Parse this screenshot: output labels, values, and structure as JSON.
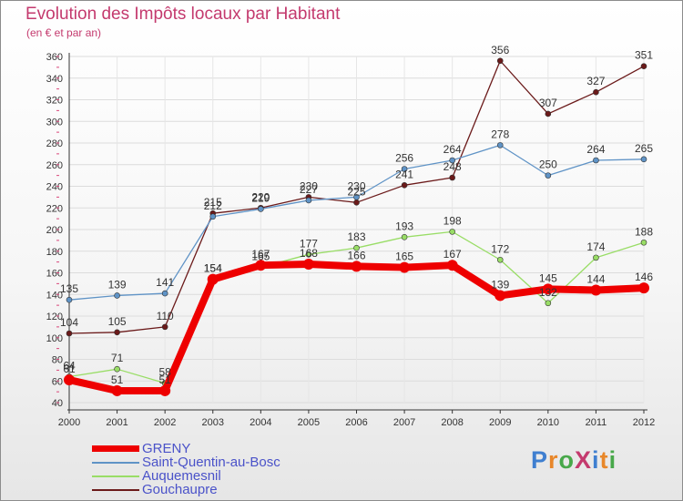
{
  "header": {
    "title": "Evolution des Impôts locaux par Habitant",
    "subtitle": "(en € et par an)"
  },
  "logo": {
    "text": "ProXiti"
  },
  "chart_data": {
    "type": "line",
    "title": "Evolution des Impôts locaux par Habitant",
    "subtitle": "(en € et par an)",
    "xlabel": "",
    "ylabel": "",
    "x": [
      "2000",
      "2001",
      "2002",
      "2003",
      "2004",
      "2005",
      "2006",
      "2007",
      "2008",
      "2009",
      "2010",
      "2011",
      "2012"
    ],
    "ylim": [
      40,
      360
    ],
    "yticks": [
      40,
      60,
      80,
      100,
      120,
      140,
      160,
      180,
      200,
      220,
      240,
      260,
      280,
      300,
      320,
      340,
      360
    ],
    "grid": true,
    "legend_position": "bottom-left",
    "series": [
      {
        "name": "GRENY",
        "color": "#ee0000",
        "values": [
          61,
          51,
          51,
          154,
          167,
          168,
          166,
          165,
          167,
          139,
          145,
          144,
          146
        ]
      },
      {
        "name": "Saint-Quentin-au-Bosc",
        "color": "#5f93c6",
        "values": [
          135,
          139,
          141,
          212,
          219,
          227,
          230,
          256,
          264,
          278,
          250,
          264,
          265
        ]
      },
      {
        "name": "Auquemesnil",
        "color": "#99dd66",
        "values": [
          64,
          71,
          58,
          154,
          165,
          177,
          183,
          193,
          198,
          172,
          132,
          174,
          188
        ]
      },
      {
        "name": "Gouchaupre",
        "color": "#6b1a1a",
        "values": [
          104,
          105,
          110,
          215,
          220,
          230,
          225,
          241,
          248,
          356,
          307,
          327,
          351
        ]
      }
    ]
  }
}
